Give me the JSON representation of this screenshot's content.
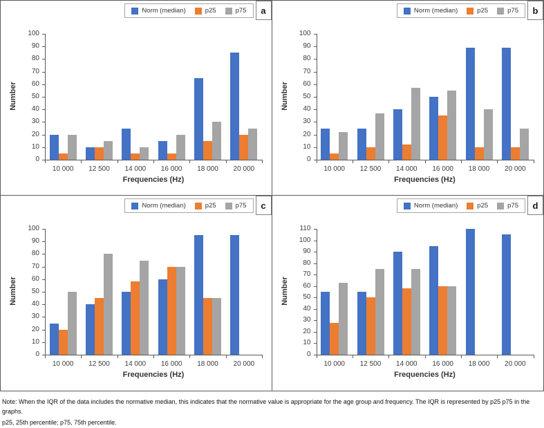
{
  "colors": {
    "norm": "#4472C4",
    "p25": "#ED7D31",
    "p75": "#A5A5A5",
    "axis": "#595959"
  },
  "note": {
    "line1": "Note: When the IQR of the data includes the normative median, this indicates that the normative value is appropriate for the age group and frequency. The IQR is represented by p25 p75 in the graphs.",
    "line2": "p25, 25th percentile; p75, 75th percentile."
  },
  "chart_data": [
    {
      "type": "bar",
      "panel": "a",
      "xlabel": "Frequencies (Hz)",
      "ylabel": "Number",
      "ylim": [
        0,
        100
      ],
      "ytick_step": 10,
      "grid": false,
      "legend_position": "top-right",
      "categories": [
        "10 000",
        "12 500",
        "14 000",
        "16 000",
        "18 000",
        "20 000"
      ],
      "series": [
        {
          "key": "norm",
          "name": "Norm (median)",
          "color": "#4472C4",
          "values": [
            20,
            10,
            25,
            15,
            65,
            85
          ]
        },
        {
          "key": "p25",
          "name": "p25",
          "color": "#ED7D31",
          "values": [
            5,
            10,
            5,
            5,
            15,
            20
          ]
        },
        {
          "key": "p75",
          "name": "p75",
          "color": "#A5A5A5",
          "values": [
            20,
            15,
            10,
            20,
            30,
            25
          ]
        }
      ]
    },
    {
      "type": "bar",
      "panel": "b",
      "xlabel": "Frequencies (Hz)",
      "ylabel": "Number",
      "ylim": [
        0,
        100
      ],
      "ytick_step": 10,
      "grid": false,
      "legend_position": "top-right",
      "categories": [
        "10 000",
        "12 500",
        "14 000",
        "16 000",
        "18 000",
        "20 000"
      ],
      "series": [
        {
          "key": "norm",
          "name": "Norm (median)",
          "color": "#4472C4",
          "values": [
            25,
            25,
            40,
            50,
            89,
            89
          ]
        },
        {
          "key": "p25",
          "name": "p25",
          "color": "#ED7D31",
          "values": [
            5,
            10,
            12,
            35,
            10,
            10
          ]
        },
        {
          "key": "p75",
          "name": "p75",
          "color": "#A5A5A5",
          "values": [
            22,
            37,
            57,
            55,
            40,
            25
          ]
        }
      ]
    },
    {
      "type": "bar",
      "panel": "c",
      "xlabel": "Frequencies (Hz)",
      "ylabel": "Number",
      "ylim": [
        0,
        100
      ],
      "ytick_step": 10,
      "grid": false,
      "legend_position": "top-right",
      "categories": [
        "10 000",
        "12 500",
        "14 000",
        "16 000",
        "18 000",
        "20 000"
      ],
      "series": [
        {
          "key": "norm",
          "name": "Norm (median)",
          "color": "#4472C4",
          "values": [
            25,
            40,
            50,
            60,
            95,
            95
          ]
        },
        {
          "key": "p25",
          "name": "p25",
          "color": "#ED7D31",
          "values": [
            20,
            45,
            58,
            70,
            45,
            0
          ]
        },
        {
          "key": "p75",
          "name": "p75",
          "color": "#A5A5A5",
          "values": [
            50,
            80,
            75,
            70,
            45,
            0
          ]
        }
      ]
    },
    {
      "type": "bar",
      "panel": "d",
      "xlabel": "Frequencies (Hz)",
      "ylabel": "Number",
      "ylim": [
        0,
        110
      ],
      "ytick_step": 10,
      "grid": false,
      "legend_position": "top-right",
      "categories": [
        "10 000",
        "12 500",
        "14 000",
        "16 000",
        "18 000",
        "20 000"
      ],
      "series": [
        {
          "key": "norm",
          "name": "Norm (median)",
          "color": "#4472C4",
          "values": [
            55,
            55,
            90,
            95,
            110,
            105
          ]
        },
        {
          "key": "p25",
          "name": "p25",
          "color": "#ED7D31",
          "values": [
            28,
            50,
            58,
            60,
            0,
            0
          ]
        },
        {
          "key": "p75",
          "name": "p75",
          "color": "#A5A5A5",
          "values": [
            63,
            75,
            75,
            60,
            0,
            0
          ]
        }
      ]
    }
  ]
}
